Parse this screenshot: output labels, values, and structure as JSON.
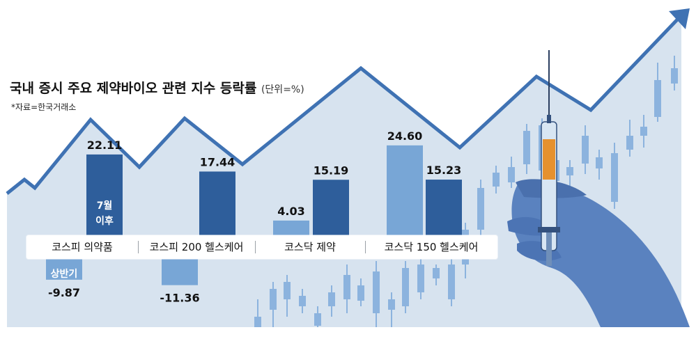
{
  "header": {
    "title": "국내 증시 주요 제약바이오 관련 지수 등락률",
    "unit": "(단위=%)",
    "source": "*자료=한국거래소"
  },
  "legend": {
    "h1_label": "상반기",
    "h2_label": "7월\n이후"
  },
  "colors": {
    "h1_bar": "#78a6d6",
    "h2_bar": "#2e5e9b",
    "background_area": "#c9d9ea",
    "arrow": "#3f72b3",
    "hand": "#5a82bf",
    "candles": "#8cb3de"
  },
  "chart_data": {
    "type": "bar",
    "title": "국내 증시 주요 제약바이오 관련 지수 등락률",
    "unit": "(단위=%)",
    "categories": [
      "코스피 의약품",
      "코스피 200 헬스케어",
      "코스닥 제약",
      "코스닥 150 헬스케어"
    ],
    "series": [
      {
        "name": "상반기",
        "values": [
          -9.87,
          -11.36,
          4.03,
          24.6
        ],
        "labels": [
          "-9.87",
          "-11.36",
          "4.03",
          "24.60"
        ]
      },
      {
        "name": "7월 이후",
        "values": [
          22.11,
          17.44,
          15.19,
          15.23
        ],
        "labels": [
          "22.11",
          "17.44",
          "15.19",
          "15.23"
        ]
      }
    ],
    "ylim": [
      -12,
      25
    ]
  }
}
